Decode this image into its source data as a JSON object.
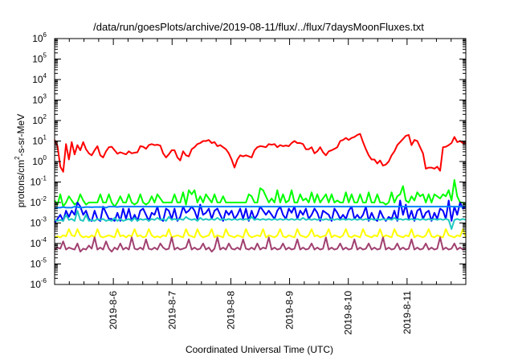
{
  "chart_data": {
    "type": "line",
    "title": "/data/run/goesPlots/archive/2019-08-11/flux/../flux/7daysMoonFluxes.txt",
    "xlabel": "Coordinated Universal Time (UTC)",
    "ylabel": "protons/cm²-s-sr-MeV",
    "ylabel_parts": [
      "protons/cm",
      "2",
      "-s-sr-MeV"
    ],
    "xlim": [
      5.0,
      12.0
    ],
    "x_unit": "days of 2019-08",
    "x_ticks": [
      {
        "x": 6,
        "label": "2019-8-6"
      },
      {
        "x": 7,
        "label": "2019-8-7"
      },
      {
        "x": 8,
        "label": "2019-8-8"
      },
      {
        "x": 9,
        "label": "2019-8-9"
      },
      {
        "x": 10,
        "label": "2019-8-10"
      },
      {
        "x": 11,
        "label": "2019-8-11"
      }
    ],
    "y_scale": "log",
    "ylim": [
      1e-06,
      1000000.0
    ],
    "y_ticks": [
      {
        "exp": -6,
        "base": "10",
        "sup": "-6"
      },
      {
        "exp": -5,
        "base": "10",
        "sup": "-5"
      },
      {
        "exp": -4,
        "base": "10",
        "sup": "-4"
      },
      {
        "exp": -3,
        "base": "10",
        "sup": "-3"
      },
      {
        "exp": -2,
        "base": "10",
        "sup": "-2"
      },
      {
        "exp": -1,
        "base": "10",
        "sup": "-1"
      },
      {
        "exp": 0,
        "base": "10",
        "sup": "0"
      },
      {
        "exp": 1,
        "base": "10",
        "sup": "1"
      },
      {
        "exp": 2,
        "base": "10",
        "sup": "2"
      },
      {
        "exp": 3,
        "base": "10",
        "sup": "3"
      },
      {
        "exp": 4,
        "base": "10",
        "sup": "4"
      },
      {
        "exp": 5,
        "base": "10",
        "sup": "5"
      },
      {
        "exp": 6,
        "base": "10",
        "sup": "6"
      }
    ],
    "grid": false,
    "series": [
      {
        "color": "#ff0000",
        "log10_values": [
          1.05,
          0.75,
          -0.25,
          -0.5,
          0.85,
          0.1,
          0.95,
          0.35,
          0.8,
          0.55,
          0.95,
          0.6,
          0.4,
          0.3,
          0.55,
          0.75,
          0.3,
          0.2,
          0.5,
          0.7,
          0.72,
          0.55,
          0.38,
          0.45,
          0.4,
          0.35,
          0.5,
          0.4,
          0.43,
          0.45,
          0.75,
          0.72,
          0.62,
          0.8,
          0.85,
          0.8,
          0.82,
          0.78,
          0.4,
          0.2,
          0.35,
          0.55,
          0.55,
          0.2,
          0.05,
          0.5,
          0.3,
          0.25,
          0.6,
          0.7,
          0.85,
          0.9,
          1.0,
          1.0,
          1.05,
          0.9,
          0.95,
          0.75,
          0.8,
          0.7,
          0.6,
          0.4,
          0.1,
          -0.3,
          0.1,
          0.3,
          0.25,
          0.3,
          0.25,
          0.2,
          0.55,
          0.7,
          0.75,
          0.73,
          0.7,
          0.85,
          0.82,
          0.85,
          0.7,
          0.8,
          0.75,
          0.78,
          0.75,
          0.9,
          1.0,
          0.9,
          0.9,
          0.85,
          0.6,
          0.6,
          0.7,
          0.4,
          0.5,
          0.7,
          0.45,
          0.3,
          0.5,
          0.55,
          0.62,
          0.7,
          1.0,
          1.05,
          1.15,
          1.05,
          1.15,
          1.2,
          1.3,
          1.35,
          0.95,
          0.6,
          0.3,
          0.1,
          0.1,
          -0.1,
          0.05,
          -0.2,
          -0.15,
          0.0,
          0.3,
          0.5,
          0.8,
          0.95,
          1.1,
          1.25,
          1.3,
          0.8,
          1.05,
          1.0,
          0.7,
          0.4,
          -0.35,
          -0.3,
          -0.3,
          -0.35,
          -0.25,
          -0.45,
          0.7,
          0.72,
          0.8,
          0.9,
          1.2,
          0.95,
          1.0,
          0.9,
          0.9
        ]
      },
      {
        "color": "#00ff00",
        "log10_values": [
          -1.9,
          -2.1,
          -1.6,
          -2.2,
          -2.0,
          -1.7,
          -1.9,
          -2.1,
          -2.0,
          -1.6,
          -1.9,
          -2.1,
          -2.0,
          -2.0,
          -2.0,
          -2.0,
          -1.6,
          -2.0,
          -2.0,
          -1.6,
          -2.0,
          -2.2,
          -2.0,
          -1.7,
          -2.0,
          -2.0,
          -1.6,
          -2.0,
          -2.1,
          -2.0,
          -1.6,
          -2.0,
          -2.1,
          -2.0,
          -1.7,
          -2.0,
          -1.6,
          -1.8,
          -2.0,
          -2.0,
          -2.0,
          -2.0,
          -1.6,
          -2.0,
          -2.0,
          -1.5,
          -2.1,
          -1.4,
          -1.6,
          -1.4,
          -2.0,
          -1.7,
          -2.0,
          -1.6,
          -1.8,
          -2.0,
          -1.6,
          -2.0,
          -2.0,
          -1.7,
          -2.0,
          -2.0,
          -2.0,
          -2.0,
          -2.0,
          -2.0,
          -2.0,
          -2.0,
          -1.6,
          -1.7,
          -2.0,
          -2.0,
          -1.3,
          -1.4,
          -1.7,
          -2.0,
          -1.8,
          -2.0,
          -1.4,
          -2.0,
          -1.6,
          -2.0,
          -1.9,
          -1.4,
          -2.0,
          -2.0,
          -1.6,
          -1.9,
          -1.8,
          -2.0,
          -1.5,
          -2.0,
          -1.6,
          -2.0,
          -1.8,
          -1.6,
          -2.0,
          -1.6,
          -2.0,
          -1.9,
          -2.0,
          -2.0,
          -1.5,
          -2.0,
          -1.6,
          -2.0,
          -2.0,
          -1.6,
          -2.0,
          -2.0,
          -1.5,
          -2.0,
          -2.0,
          -1.6,
          -2.0,
          -2.0,
          -2.1,
          -2.0,
          -1.5,
          -2.0,
          -1.7,
          -1.6,
          -1.2,
          -1.9,
          -2.0,
          -1.7,
          -1.9,
          -1.5,
          -1.7,
          -1.6,
          -2.0,
          -1.6,
          -2.0,
          -1.6,
          -1.7,
          -1.8,
          -1.6,
          -1.7,
          -1.4,
          -1.9,
          -0.9,
          -1.7,
          -2.0,
          -2.0,
          -2.1
        ]
      },
      {
        "color": "#0000ff",
        "log10_values": [
          -3.0,
          -2.8,
          -2.6,
          -2.9,
          -2.4,
          -2.7,
          -2.4,
          -2.6,
          -2.0,
          -2.2,
          -2.6,
          -2.4,
          -2.8,
          -2.9,
          -2.4,
          -2.8,
          -2.9,
          -2.2,
          -2.5,
          -2.8,
          -2.8,
          -2.9,
          -2.5,
          -2.9,
          -2.3,
          -2.8,
          -2.3,
          -2.9,
          -2.6,
          -2.9,
          -2.4,
          -2.3,
          -2.6,
          -2.9,
          -2.5,
          -2.6,
          -2.2,
          -2.8,
          -2.9,
          -2.3,
          -2.4,
          -2.8,
          -2.3,
          -2.9,
          -2.7,
          -2.2,
          -2.5,
          -2.4,
          -2.2,
          -2.4,
          -2.8,
          -2.1,
          -2.6,
          -2.5,
          -2.3,
          -2.8,
          -2.4,
          -2.3,
          -2.6,
          -2.9,
          -2.4,
          -2.6,
          -2.4,
          -2.8,
          -2.6,
          -2.3,
          -2.8,
          -2.3,
          -2.9,
          -2.4,
          -2.8,
          -2.6,
          -2.2,
          -2.4,
          -2.6,
          -2.4,
          -2.6,
          -2.8,
          -2.4,
          -2.2,
          -2.6,
          -2.8,
          -2.3,
          -2.5,
          -2.2,
          -2.8,
          -2.4,
          -2.6,
          -2.3,
          -2.8,
          -2.6,
          -2.3,
          -2.5,
          -2.9,
          -2.4,
          -2.5,
          -2.6,
          -2.9,
          -2.3,
          -2.5,
          -2.8,
          -2.6,
          -2.8,
          -2.4,
          -2.2,
          -2.8,
          -2.6,
          -2.8,
          -2.6,
          -2.2,
          -2.9,
          -2.5,
          -2.8,
          -2.9,
          -2.4,
          -2.7,
          -2.9,
          -2.7,
          -2.8,
          -2.4,
          -2.9,
          -1.9,
          -2.6,
          -2.1,
          -2.8,
          -2.4,
          -2.9,
          -2.4,
          -2.3,
          -2.8,
          -2.5,
          -2.4,
          -2.9,
          -2.5,
          -2.8,
          -2.3,
          -2.4,
          -2.8,
          -1.9,
          -2.9,
          -2.2,
          -2.6,
          -2.0,
          -2.3,
          -2.2
        ]
      },
      {
        "color": "#0080ff",
        "log10_values": [
          -2.3,
          -2.25,
          -2.25,
          -2.22,
          -2.25,
          -2.25,
          -2.25,
          -2.2,
          -2.22,
          -2.25,
          -2.24,
          -2.22,
          -2.22,
          -2.23,
          -2.22,
          -2.22,
          -2.22,
          -2.22,
          -2.25,
          -2.2,
          -2.2,
          -2.2,
          -2.22,
          -2.2,
          -2.2,
          -2.2,
          -2.2,
          -2.2,
          -2.2,
          -2.2,
          -2.2,
          -2.2,
          -2.2,
          -2.2,
          -2.2,
          -2.2,
          -2.2,
          -2.2,
          -2.2,
          -2.2,
          -2.2,
          -2.2,
          -2.2,
          -2.2,
          -2.2,
          -2.2,
          -2.2,
          -2.2,
          -2.2,
          -2.2,
          -2.2,
          -2.2,
          -2.2,
          -2.2,
          -2.2,
          -2.2,
          -2.2,
          -2.2,
          -2.2,
          -2.2,
          -2.2,
          -2.2,
          -2.2,
          -2.2,
          -2.2,
          -2.2,
          -2.2,
          -2.2,
          -2.2,
          -2.2,
          -2.2,
          -2.2,
          -2.2,
          -2.2,
          -2.2,
          -2.2,
          -2.2,
          -2.2,
          -2.2,
          -2.2,
          -2.2,
          -2.2,
          -2.2,
          -2.2,
          -2.2,
          -2.2,
          -2.2,
          -2.2,
          -2.2,
          -2.2,
          -2.2,
          -2.2,
          -2.2,
          -2.2,
          -2.2,
          -2.2,
          -2.2,
          -2.2,
          -2.2,
          -2.2,
          -2.2,
          -2.2,
          -2.2,
          -2.2,
          -2.2,
          -2.2,
          -2.2,
          -2.2,
          -2.2,
          -2.2,
          -2.2,
          -2.2,
          -2.2,
          -2.2,
          -2.2,
          -2.2,
          -2.2,
          -2.2,
          -2.2,
          -2.2,
          -2.2,
          -2.2,
          -2.2,
          -2.2,
          -2.2,
          -2.2,
          -2.2,
          -2.2,
          -2.2,
          -2.2,
          -2.2,
          -2.2,
          -2.2,
          -2.2,
          -2.2,
          -2.2,
          -2.2,
          -2.2,
          -2.2,
          -2.2,
          -2.2,
          -2.2,
          -2.2,
          -2.2,
          -2.2
        ]
      },
      {
        "color": "#20c8c0",
        "log10_values": [
          -2.85,
          -2.9,
          -2.85,
          -2.9,
          -2.6,
          -2.85,
          -2.8,
          -2.9,
          -2.4,
          -2.85,
          -2.9,
          -2.6,
          -2.9,
          -2.85,
          -2.9,
          -2.8,
          -2.85,
          -2.8,
          -2.9,
          -2.85,
          -2.9,
          -2.75,
          -2.9,
          -2.8,
          -2.9,
          -2.85,
          -2.8,
          -2.9,
          -2.75,
          -2.9,
          -2.8,
          -2.85,
          -2.8,
          -2.9,
          -2.8,
          -2.85,
          -2.75,
          -2.85,
          -2.8,
          -2.9,
          -2.7,
          -2.85,
          -2.8,
          -2.85,
          -2.8,
          -2.85,
          -2.7,
          -2.8,
          -2.85,
          -2.8,
          -2.9,
          -2.75,
          -2.85,
          -2.8,
          -2.85,
          -2.8,
          -2.85,
          -2.75,
          -2.85,
          -2.8,
          -2.85,
          -2.8,
          -2.85,
          -2.8,
          -2.85,
          -2.8,
          -2.85,
          -2.8,
          -2.85,
          -2.7,
          -2.85,
          -2.8,
          -2.85,
          -2.8,
          -2.85,
          -2.8,
          -2.85,
          -2.8,
          -2.85,
          -2.8,
          -2.85,
          -2.8,
          -2.85,
          -2.8,
          -2.85,
          -2.8,
          -2.85,
          -2.75,
          -2.85,
          -2.8,
          -2.85,
          -2.8,
          -2.85,
          -2.8,
          -2.85,
          -2.8,
          -2.85,
          -2.8,
          -2.85,
          -2.8,
          -2.85,
          -2.8,
          -2.85,
          -2.8,
          -2.85,
          -2.8,
          -2.85,
          -2.8,
          -2.85,
          -2.8,
          -2.85,
          -2.8,
          -2.85,
          -2.8,
          -2.85,
          -2.8,
          -2.85,
          -2.8,
          -2.85,
          -2.75,
          -2.85,
          -2.8,
          -2.85,
          -2.8,
          -2.85,
          -2.8,
          -2.85,
          -2.8,
          -2.85,
          -2.8,
          -2.85,
          -2.8,
          -2.85,
          -2.8,
          -2.85,
          -2.8,
          -2.85,
          -2.8,
          -2.85,
          -3.3,
          -2.85,
          -2.8,
          -2.85,
          -2.8,
          -2.85
        ]
      },
      {
        "color": "#ffff00",
        "log10_values": [
          -3.7,
          -3.65,
          -3.7,
          -3.6,
          -3.65,
          -3.3,
          -3.6,
          -3.65,
          -3.3,
          -3.6,
          -3.7,
          -3.65,
          -3.7,
          -3.6,
          -3.7,
          -3.3,
          -3.65,
          -3.7,
          -3.65,
          -3.6,
          -3.65,
          -3.7,
          -3.3,
          -3.65,
          -3.6,
          -3.7,
          -3.6,
          -3.65,
          -3.3,
          -3.65,
          -3.6,
          -3.7,
          -3.65,
          -3.3,
          -3.6,
          -3.7,
          -3.65,
          -3.7,
          -3.6,
          -3.65,
          -3.3,
          -3.7,
          -3.65,
          -3.6,
          -3.65,
          -3.7,
          -3.3,
          -3.6,
          -3.65,
          -3.7,
          -3.3,
          -3.6,
          -3.7,
          -3.65,
          -3.6,
          -3.3,
          -3.7,
          -3.6,
          -3.65,
          -3.7,
          -3.3,
          -3.6,
          -3.65,
          -3.7,
          -3.6,
          -3.65,
          -3.7,
          -3.3,
          -3.6,
          -3.7,
          -3.65,
          -3.6,
          -3.65,
          -3.3,
          -3.7,
          -3.6,
          -3.65,
          -3.7,
          -3.6,
          -3.3,
          -3.65,
          -3.7,
          -3.6,
          -3.65,
          -3.7,
          -3.3,
          -3.6,
          -3.65,
          -3.7,
          -3.6,
          -3.3,
          -3.65,
          -3.6,
          -3.7,
          -3.65,
          -3.6,
          -3.3,
          -3.7,
          -3.6,
          -3.65,
          -3.7,
          -3.6,
          -3.3,
          -3.65,
          -3.7,
          -3.6,
          -3.65,
          -3.7,
          -3.3,
          -3.6,
          -3.65,
          -3.7,
          -3.6,
          -3.65,
          -3.3,
          -3.7,
          -3.6,
          -3.65,
          -3.7,
          -3.3,
          -3.6,
          -3.65,
          -3.7,
          -3.6,
          -3.65,
          -3.3,
          -3.7,
          -3.6,
          -3.65,
          -3.7,
          -3.6,
          -3.3,
          -3.65,
          -3.7,
          -3.6,
          -3.65,
          -3.7,
          -3.3,
          -3.6,
          -3.65,
          -3.7,
          -3.6,
          -3.65,
          -3.3,
          -3.7
        ]
      },
      {
        "color": "#a04070",
        "log10_values": [
          -4.3,
          -4.2,
          -4.25,
          -3.9,
          -4.3,
          -4.2,
          -4.25,
          -4.3,
          -4.0,
          -4.4,
          -4.25,
          -4.3,
          -4.1,
          -4.25,
          -3.7,
          -4.3,
          -4.2,
          -4.3,
          -3.9,
          -4.25,
          -4.4,
          -4.2,
          -4.3,
          -4.0,
          -4.3,
          -4.2,
          -4.3,
          -3.7,
          -4.25,
          -4.3,
          -4.2,
          -4.3,
          -3.8,
          -4.25,
          -4.3,
          -4.2,
          -4.3,
          -4.0,
          -4.2,
          -4.3,
          -4.25,
          -3.7,
          -4.3,
          -4.2,
          -4.3,
          -4.25,
          -4.2,
          -3.8,
          -4.3,
          -4.2,
          -4.3,
          -4.25,
          -4.0,
          -4.3,
          -4.2,
          -4.4,
          -4.25,
          -3.7,
          -4.3,
          -4.2,
          -4.3,
          -4.0,
          -4.25,
          -4.3,
          -4.2,
          -4.3,
          -3.8,
          -4.25,
          -4.3,
          -4.2,
          -4.3,
          -4.0,
          -4.3,
          -4.2,
          -4.25,
          -3.7,
          -4.3,
          -4.2,
          -4.3,
          -4.25,
          -4.0,
          -4.3,
          -4.2,
          -4.3,
          -4.25,
          -3.8,
          -4.3,
          -4.2,
          -4.3,
          -4.25,
          -4.0,
          -4.3,
          -4.2,
          -4.3,
          -4.25,
          -3.7,
          -4.3,
          -4.2,
          -4.3,
          -4.25,
          -4.0,
          -4.3,
          -4.2,
          -4.3,
          -4.25,
          -3.8,
          -4.3,
          -4.2,
          -4.3,
          -4.25,
          -4.0,
          -4.3,
          -4.2,
          -4.3,
          -4.25,
          -3.7,
          -4.3,
          -4.2,
          -4.3,
          -4.25,
          -4.0,
          -4.3,
          -4.2,
          -4.3,
          -4.25,
          -3.8,
          -4.3,
          -4.2,
          -4.3,
          -4.25,
          -4.0,
          -4.3,
          -4.2,
          -4.3,
          -4.25,
          -3.7,
          -4.3,
          -4.2,
          -4.3,
          -4.25,
          -4.0,
          -4.3,
          -4.2,
          -4.3,
          -4.25
        ]
      }
    ]
  }
}
